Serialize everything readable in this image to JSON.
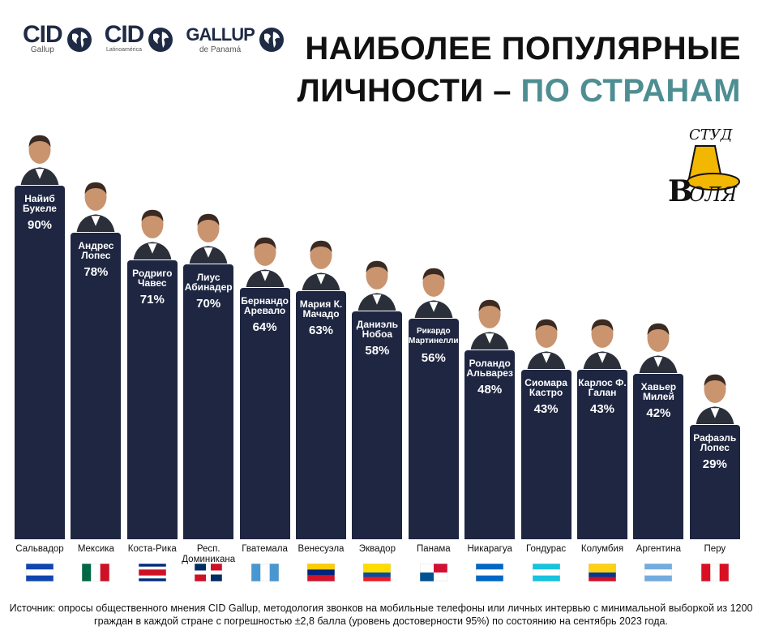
{
  "logos": [
    {
      "name": "CID",
      "sub": "Gallup"
    },
    {
      "name": "CID",
      "sub": "Latinoamérica"
    },
    {
      "name": "GALLUP",
      "sub": "de Panamá"
    }
  ],
  "title_line1": "НАИБОЛЕЕ ПОПУЛЯРНЫЕ",
  "title_line2_main": "ЛИЧНОСТИ – ",
  "title_line2_accent": "ПО СТРАНАМ",
  "stamp": {
    "top": "СТУД",
    "bottom": "ОЛЯ",
    "letter": "В"
  },
  "chart_data": {
    "type": "bar",
    "categories": [
      "Сальвадор",
      "Мексика",
      "Коста-Рика",
      "Респ.\nДоминикана",
      "Гватемала",
      "Венесуэла",
      "Эквадор",
      "Панама",
      "Никарагуа",
      "Гондурас",
      "Колумбия",
      "Аргентина",
      "Перу"
    ],
    "leaders": [
      "Найиб\nБукеле",
      "Андрес\nЛопес",
      "Родриго\nЧавес",
      "Лиус\nАбинадер",
      "Бернандо\nАревало",
      "Мария К.\nМачадо",
      "Даниэль\nНобоа",
      "Рикардо\nМартинелли",
      "Роландо\nАльварез",
      "Сиомара\nКастро",
      "Карлос Ф.\nГалан",
      "Хавьер\nМилей",
      "Рафаэль\nЛопес"
    ],
    "labels": [
      "90%",
      "78%",
      "71%",
      "70%",
      "64%",
      "63%",
      "58%",
      "56%",
      "48%",
      "43%",
      "43%",
      "42%",
      "29%"
    ],
    "values": [
      90,
      78,
      71,
      70,
      64,
      63,
      58,
      56,
      48,
      43,
      43,
      42,
      29
    ],
    "ylim": [
      0,
      100
    ],
    "bar_color": "#1e2642",
    "flags": [
      {
        "type": "h3",
        "colors": [
          "#0f47af",
          "#ffffff",
          "#0f47af"
        ]
      },
      {
        "type": "v3",
        "colors": [
          "#006847",
          "#ffffff",
          "#ce1126"
        ]
      },
      {
        "type": "h5",
        "colors": [
          "#002b7f",
          "#ffffff",
          "#ce1126",
          "#ffffff",
          "#002b7f"
        ]
      },
      {
        "type": "quad",
        "colors": [
          "#002d62",
          "#ce1126",
          "#ffffff"
        ]
      },
      {
        "type": "v3",
        "colors": [
          "#4997d0",
          "#ffffff",
          "#4997d0"
        ]
      },
      {
        "type": "h3",
        "colors": [
          "#ffcc00",
          "#00247d",
          "#cf142b"
        ]
      },
      {
        "type": "h3w",
        "colors": [
          "#ffdd00",
          "#034ea2",
          "#ed1c24"
        ]
      },
      {
        "type": "quad4",
        "colors": [
          "#ffffff",
          "#d21034",
          "#005293",
          "#ffffff"
        ]
      },
      {
        "type": "h3",
        "colors": [
          "#0067c6",
          "#ffffff",
          "#0067c6"
        ]
      },
      {
        "type": "h3",
        "colors": [
          "#18c3df",
          "#ffffff",
          "#18c3df"
        ]
      },
      {
        "type": "h3w",
        "colors": [
          "#fcd116",
          "#003893",
          "#ce1126"
        ]
      },
      {
        "type": "h3",
        "colors": [
          "#74acdf",
          "#ffffff",
          "#74acdf"
        ]
      },
      {
        "type": "v3",
        "colors": [
          "#d91023",
          "#ffffff",
          "#d91023"
        ]
      }
    ]
  },
  "source": "Источник: опросы общественного мнения CID Gallup, методология звонков на мобильные телефоны или личных интервью с минимальной выборкой из 1200 граждан в каждой стране с погрешностью ±2,8 балла (уровень достоверности 95%) по состоянию на сентябрь 2023 года."
}
